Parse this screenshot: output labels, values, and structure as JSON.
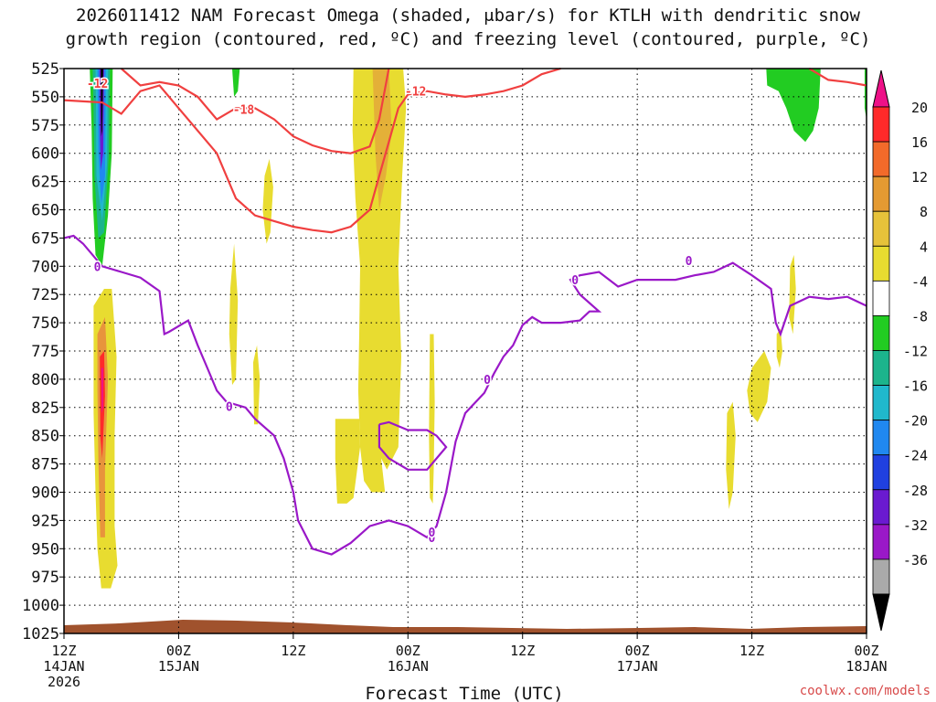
{
  "chart_data": {
    "type": "time-height cross section",
    "title_line1": "2026011412 NAM Forecast Omega (shaded, μbar/s) for KTLH with dendritic snow",
    "title_line2": "growth region (contoured, red, ºC) and freezing level (contoured, purple, ºC)",
    "xlabel": "Forecast Time (UTC)",
    "credit": "coolwx.com/models",
    "x_range_hours": [
      0,
      84
    ],
    "x_ticks": [
      {
        "hour": 0,
        "l1": "12Z",
        "l2": "14JAN",
        "l3": "2026"
      },
      {
        "hour": 12,
        "l1": "00Z",
        "l2": "15JAN",
        "l3": ""
      },
      {
        "hour": 24,
        "l1": "12Z",
        "l2": "",
        "l3": ""
      },
      {
        "hour": 36,
        "l1": "00Z",
        "l2": "16JAN",
        "l3": ""
      },
      {
        "hour": 48,
        "l1": "12Z",
        "l2": "",
        "l3": ""
      },
      {
        "hour": 60,
        "l1": "00Z",
        "l2": "17JAN",
        "l3": ""
      },
      {
        "hour": 72,
        "l1": "12Z",
        "l2": "",
        "l3": ""
      },
      {
        "hour": 84,
        "l1": "00Z",
        "l2": "18JAN",
        "l3": ""
      }
    ],
    "y_range_hpa": [
      1025,
      525
    ],
    "y_ticks": [
      525,
      550,
      575,
      600,
      625,
      650,
      675,
      700,
      725,
      750,
      775,
      800,
      825,
      850,
      875,
      900,
      925,
      950,
      975,
      1000,
      1025
    ],
    "colorbar": {
      "labels": [
        "20",
        "16",
        "12",
        "8",
        "4",
        "-4",
        "-8",
        "-12",
        "-16",
        "-20",
        "-24",
        "-28",
        "-32",
        "-36"
      ],
      "colors": [
        "#ff2a2a",
        "#f26a2a",
        "#e49a32",
        "#e6c23a",
        "#e8dc30",
        "#ffffff",
        "#22cc22",
        "#1cb48c",
        "#20b8cc",
        "#2088f0",
        "#2040e0",
        "#6a1ad0",
        "#9a18c8",
        "#aaaaaa"
      ],
      "top_color": "#ee1188",
      "bottom_color": "#000000"
    },
    "contours": {
      "dgz_red": {
        "color": "#f04040",
        "labels": [
          "-12",
          "-18",
          "-12"
        ],
        "line1": [
          [
            0,
            553
          ],
          [
            4,
            555
          ],
          [
            6,
            565
          ],
          [
            8,
            545
          ],
          [
            10,
            540
          ],
          [
            12,
            560
          ],
          [
            16,
            600
          ],
          [
            18,
            640
          ],
          [
            20,
            655
          ],
          [
            22,
            660
          ],
          [
            24,
            665
          ],
          [
            26,
            668
          ],
          [
            28,
            670
          ],
          [
            30,
            665
          ],
          [
            32,
            650
          ],
          [
            33,
            620
          ],
          [
            34,
            590
          ],
          [
            35,
            560
          ],
          [
            36,
            548
          ],
          [
            38,
            545
          ],
          [
            40,
            548
          ],
          [
            42,
            550
          ],
          [
            44,
            548
          ],
          [
            46,
            545
          ],
          [
            48,
            540
          ],
          [
            50,
            530
          ],
          [
            52,
            525
          ]
        ],
        "line2": [
          [
            6,
            525
          ],
          [
            8,
            540
          ],
          [
            10,
            537
          ],
          [
            12,
            540
          ],
          [
            14,
            550
          ],
          [
            16,
            570
          ],
          [
            18,
            560
          ],
          [
            20,
            560
          ],
          [
            22,
            570
          ],
          [
            24,
            585
          ],
          [
            26,
            593
          ],
          [
            28,
            598
          ],
          [
            30,
            600
          ],
          [
            32,
            594
          ],
          [
            33,
            570
          ],
          [
            34,
            525
          ]
        ],
        "line3": [
          [
            78,
            525
          ],
          [
            80,
            535
          ],
          [
            82,
            537
          ],
          [
            84,
            540
          ]
        ]
      },
      "freezing_purple": {
        "color": "#9a18c8",
        "labels": [
          "0",
          "0",
          "0",
          "0",
          "0",
          "0",
          "0"
        ],
        "line1": [
          [
            0,
            675
          ],
          [
            1,
            673
          ],
          [
            2,
            680
          ],
          [
            4,
            700
          ],
          [
            6,
            705
          ],
          [
            8,
            710
          ],
          [
            10,
            722
          ],
          [
            10.5,
            760
          ],
          [
            11,
            758
          ],
          [
            13,
            748
          ],
          [
            14,
            770
          ],
          [
            15,
            790
          ],
          [
            16,
            810
          ],
          [
            17,
            820
          ],
          [
            19,
            825
          ],
          [
            20,
            835
          ],
          [
            22,
            850
          ],
          [
            23,
            870
          ],
          [
            24,
            900
          ],
          [
            24.5,
            925
          ],
          [
            26,
            950
          ],
          [
            28,
            955
          ],
          [
            30,
            945
          ],
          [
            32,
            930
          ],
          [
            34,
            925
          ],
          [
            36,
            930
          ],
          [
            38,
            940
          ],
          [
            39,
            930
          ],
          [
            40,
            900
          ],
          [
            41,
            855
          ],
          [
            42,
            830
          ],
          [
            44,
            812
          ],
          [
            45,
            795
          ],
          [
            46,
            780
          ],
          [
            47,
            770
          ],
          [
            48,
            752
          ],
          [
            49,
            745
          ],
          [
            50,
            750
          ],
          [
            52,
            750
          ],
          [
            54,
            748
          ],
          [
            55,
            740
          ],
          [
            56,
            740
          ],
          [
            54,
            725
          ],
          [
            53,
            712
          ],
          [
            54,
            708
          ],
          [
            56,
            705
          ],
          [
            58,
            718
          ],
          [
            60,
            712
          ],
          [
            64,
            712
          ],
          [
            66,
            708
          ],
          [
            68,
            705
          ],
          [
            70,
            697
          ],
          [
            72,
            708
          ],
          [
            74,
            720
          ],
          [
            74.5,
            750
          ],
          [
            75,
            760
          ],
          [
            76,
            735
          ],
          [
            78,
            727
          ],
          [
            80,
            729
          ],
          [
            82,
            727
          ],
          [
            84,
            735
          ]
        ],
        "line2": [
          [
            33,
            840
          ],
          [
            34,
            838
          ],
          [
            36,
            845
          ],
          [
            38,
            845
          ],
          [
            39,
            850
          ],
          [
            40,
            860
          ],
          [
            38,
            880
          ],
          [
            36,
            880
          ],
          [
            34,
            870
          ],
          [
            33,
            860
          ],
          [
            33,
            840
          ]
        ]
      }
    },
    "shading_regions": [
      {
        "name": "early-column",
        "hours": [
          3.2,
          4.8
        ],
        "hpa_range": [
          525,
          700
        ],
        "range": "strong negative"
      },
      {
        "name": "early-low-level",
        "hours": [
          3,
          5.5
        ],
        "hpa_range": [
          720,
          985
        ],
        "range": "strong positive"
      },
      {
        "name": "16jan-column",
        "hours": [
          31,
          34
        ],
        "hpa_range": [
          525,
          900
        ],
        "range": "positive"
      },
      {
        "name": "17jan-12z-upper",
        "hours": [
          73,
          79
        ],
        "hpa_range": [
          525,
          590
        ],
        "range": "negative"
      }
    ]
  }
}
